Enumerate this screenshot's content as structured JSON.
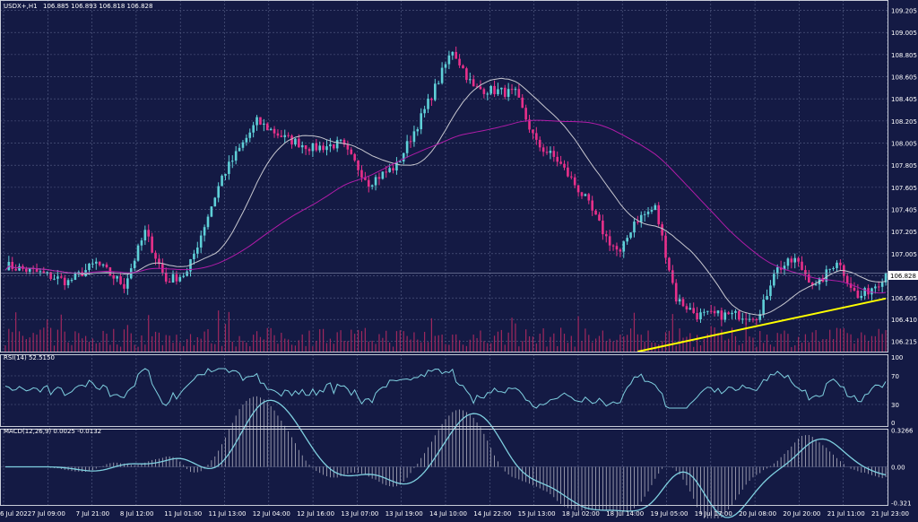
{
  "window": {
    "title": "USDX+,H1",
    "ohlc": "106.885 106.893 106.818 106.828",
    "rsi_label": "RSI(14) 52.5150",
    "macd_label": "MACD(12,26,9) 0.0025 -0.0132",
    "current_price_label": "106.828"
  },
  "colors": {
    "background": "#141a44",
    "grid": "#586088",
    "bull": "#5fd0d8",
    "bear": "#e8308a",
    "ma_fast": "#c8c8d0",
    "ma_slow": "#b01ca8",
    "trendline": "#ffff00",
    "rsi": "#7fd0e0",
    "macd_signal": "#7fd0e0",
    "macd_hist": "#b0b0c0",
    "volume": "#a0285e"
  },
  "chart_data": [
    {
      "type": "candlestick",
      "panel": "price",
      "symbol": "USDX+",
      "timeframe": "H1",
      "ylim": [
        106.12,
        109.25
      ],
      "y_ticks": [
        "109.205",
        "109.005",
        "108.805",
        "108.605",
        "108.405",
        "108.205",
        "108.005",
        "107.805",
        "107.605",
        "107.405",
        "107.205",
        "107.005",
        "106.805",
        "106.605",
        "106.410",
        "106.215"
      ],
      "x_ticks": [
        "6 Jul 2022",
        "7 Jul 09:00",
        "7 Jul 21:00",
        "8 Jul 12:00",
        "11 Jul 01:00",
        "11 Jul 13:00",
        "12 Jul 04:00",
        "12 Jul 16:00",
        "13 Jul 07:00",
        "13 Jul 19:00",
        "14 Jul 10:00",
        "14 Jul 22:00",
        "15 Jul 13:00",
        "18 Jul 02:00",
        "18 Jul 14:00",
        "19 Jul 05:00",
        "19 Jul 17:00",
        "20 Jul 08:00",
        "20 Jul 20:00",
        "21 Jul 11:00",
        "21 Jul 23:00"
      ],
      "anchors": [
        [
          0,
          106.9
        ],
        [
          10,
          106.83
        ],
        [
          18,
          106.75
        ],
        [
          26,
          106.92
        ],
        [
          34,
          106.72
        ],
        [
          40,
          107.2
        ],
        [
          46,
          106.76
        ],
        [
          52,
          106.83
        ],
        [
          62,
          107.7
        ],
        [
          72,
          108.2
        ],
        [
          80,
          108.05
        ],
        [
          88,
          107.96
        ],
        [
          96,
          108.0
        ],
        [
          104,
          107.65
        ],
        [
          112,
          107.8
        ],
        [
          120,
          108.3
        ],
        [
          128,
          108.85
        ],
        [
          134,
          108.5
        ],
        [
          140,
          108.48
        ],
        [
          146,
          108.45
        ],
        [
          152,
          108.0
        ],
        [
          158,
          107.85
        ],
        [
          166,
          107.5
        ],
        [
          172,
          107.15
        ],
        [
          176,
          107.0
        ],
        [
          180,
          107.3
        ],
        [
          186,
          107.42
        ],
        [
          192,
          106.6
        ],
        [
          198,
          106.45
        ],
        [
          204,
          106.45
        ],
        [
          210,
          106.45
        ],
        [
          216,
          106.45
        ],
        [
          220,
          106.85
        ],
        [
          226,
          106.95
        ],
        [
          232,
          106.7
        ],
        [
          238,
          106.95
        ],
        [
          244,
          106.6
        ],
        [
          250,
          106.75
        ],
        [
          252,
          106.83
        ]
      ],
      "current_price": 106.828,
      "trendline": [
        [
          181,
          106.12
        ],
        [
          252,
          106.6
        ]
      ],
      "volume_max": 450
    },
    {
      "type": "line",
      "panel": "rsi",
      "name": "RSI(14)",
      "ylim": [
        0,
        100
      ],
      "levels": [
        70,
        30
      ],
      "y_ticks": [
        "100",
        "70",
        "30",
        "0"
      ]
    },
    {
      "type": "histogram",
      "panel": "macd",
      "name": "MACD(12,26,9)",
      "ylim": [
        -0.34,
        0.34
      ],
      "y_ticks": [
        "0.3266",
        "0.00",
        "-0.321"
      ],
      "y_tick_values": [
        0.3266,
        0.0,
        -0.321
      ]
    }
  ]
}
